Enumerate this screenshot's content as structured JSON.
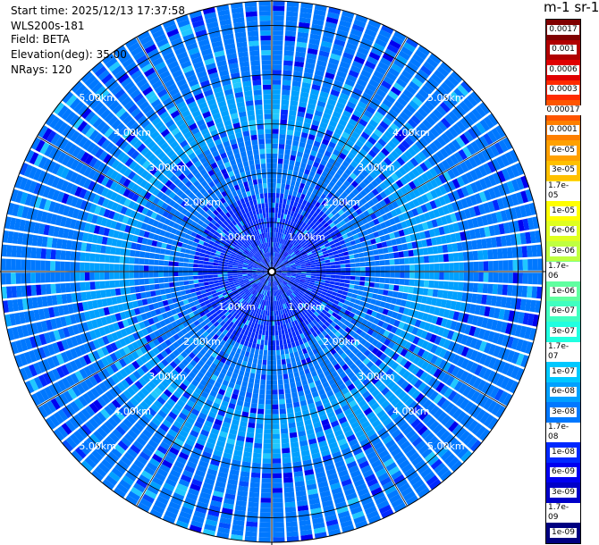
{
  "info": {
    "start_time": "Start time: 2025/12/13 17:37:58",
    "instrument": "WLS200s-181",
    "field": "Field: BETA",
    "elevation": "Elevation(deg): 35.00",
    "nrays": "NRays: 120"
  },
  "colorbar": {
    "unit_label": "m-1 sr-1",
    "ticks": [
      "0.0017",
      "0.001",
      "0.0006",
      "0.0003",
      "0.00017",
      "0.0001",
      "6e-05",
      "3e-05",
      "1.7e-05",
      "1e-05",
      "6e-06",
      "3e-06",
      "1.7e-06",
      "1e-06",
      "6e-07",
      "3e-07",
      "1.7e-07",
      "1e-07",
      "6e-08",
      "3e-08",
      "1.7e-08",
      "1e-08",
      "6e-09",
      "3e-09",
      "1.7e-09",
      "1e-09"
    ],
    "colors": [
      "#800000",
      "#b00000",
      "#e00000",
      "#ff2a00",
      "#ff5500",
      "#ff7f00",
      "#ffa000",
      "#ffc000",
      "#ffe000",
      "#ffff00",
      "#dfff20",
      "#bfff40",
      "#80ff80",
      "#60ffa0",
      "#40ffc0",
      "#20ffe0",
      "#00f0ff",
      "#00c8ff",
      "#00a0ff",
      "#0078ff",
      "#0050ff",
      "#0028ff",
      "#0000f0",
      "#0000c8",
      "#0000a0",
      "#000080"
    ]
  },
  "chart_data": {
    "type": "heatmap",
    "projection": "polar-ppi",
    "n_rays": 120,
    "range_rings_km": [
      1,
      2,
      3,
      4,
      5
    ],
    "range_labels": [
      "1.00km",
      "2.00km",
      "3.00km",
      "4.00km",
      "5.00km"
    ],
    "max_range_km": 5.5,
    "azimuth_grid_deg": [
      0,
      30,
      60,
      90,
      120,
      150,
      180,
      210,
      240,
      270,
      300,
      330
    ],
    "bands": [
      {
        "from_km": 0.0,
        "to_km": 0.3,
        "beta": 1e-08
      },
      {
        "from_km": 0.3,
        "to_km": 1.6,
        "beta": 1.2e-08
      },
      {
        "from_km": 1.6,
        "to_km": 2.8,
        "beta": 3e-08
      },
      {
        "from_km": 2.8,
        "to_km": 3.9,
        "beta": 6e-08
      },
      {
        "from_km": 3.9,
        "to_km": 4.6,
        "beta": 4e-08
      },
      {
        "from_km": 4.6,
        "to_km": 5.5,
        "beta": 3e-08
      }
    ]
  }
}
